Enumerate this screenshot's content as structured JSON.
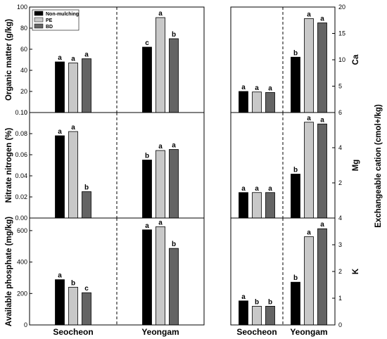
{
  "chart_data": {
    "type": "bar",
    "sites": [
      "Seocheon",
      "Yeongam"
    ],
    "treatments": [
      {
        "name": "Non-mulching",
        "color": "#000000"
      },
      {
        "name": "PE",
        "color": "#c8c8c8"
      },
      {
        "name": "BD",
        "color": "#646464"
      }
    ],
    "shared_ylabel": "Exchangeable cation (cmol+/kg)",
    "panels": [
      {
        "id": "organic-matter",
        "ylabel": "Organic matter (g/kg)",
        "ylim": [
          0,
          100
        ],
        "yticks": [
          "0",
          "20",
          "40",
          "60",
          "80",
          "100"
        ],
        "legend": true,
        "values": {
          "Seocheon": [
            48,
            47,
            51
          ],
          "Yeongam": [
            62,
            90,
            70
          ]
        },
        "letters": {
          "Seocheon": [
            "a",
            "a",
            "a"
          ],
          "Yeongam": [
            "c",
            "a",
            "b"
          ]
        }
      },
      {
        "id": "ca",
        "ylabel": "Ca",
        "ylim": [
          0,
          20
        ],
        "yticks": [
          "5",
          "10",
          "15",
          "20"
        ],
        "values": {
          "Seocheon": [
            4.0,
            3.9,
            3.8
          ],
          "Yeongam": [
            10.5,
            17.8,
            17.0
          ]
        },
        "letters": {
          "Seocheon": [
            "a",
            "a",
            "a"
          ],
          "Yeongam": [
            "b",
            "a",
            "a"
          ]
        }
      },
      {
        "id": "nitrate-nitrogen",
        "ylabel": "Nitrate nitrogen (%)",
        "ylim": [
          0,
          0.1
        ],
        "yticks": [
          "0.00",
          "0.02",
          "0.04",
          "0.06",
          "0.08",
          "0.10"
        ],
        "values": {
          "Seocheon": [
            0.078,
            0.082,
            0.025
          ],
          "Yeongam": [
            0.055,
            0.064,
            0.065
          ]
        },
        "letters": {
          "Seocheon": [
            "a",
            "a",
            "b"
          ],
          "Yeongam": [
            "b",
            "a",
            "a"
          ]
        }
      },
      {
        "id": "mg",
        "ylabel": "Mg",
        "ylim": [
          0,
          6
        ],
        "yticks": [
          "2",
          "4",
          "6"
        ],
        "values": {
          "Seocheon": [
            1.45,
            1.45,
            1.45
          ],
          "Yeongam": [
            2.5,
            5.45,
            5.35
          ]
        },
        "letters": {
          "Seocheon": [
            "a",
            "a",
            "a"
          ],
          "Yeongam": [
            "b",
            "a",
            "a"
          ]
        }
      },
      {
        "id": "available-phosphate",
        "ylabel": "Available phosphate (mg/kg)",
        "ylim": [
          0,
          680
        ],
        "yticks": [
          "0",
          "200",
          "400",
          "600"
        ],
        "values": {
          "Seocheon": [
            288,
            240,
            205
          ],
          "Yeongam": [
            605,
            625,
            487
          ]
        },
        "letters": {
          "Seocheon": [
            "a",
            "b",
            "c"
          ],
          "Yeongam": [
            "a",
            "a",
            "b"
          ]
        }
      },
      {
        "id": "k",
        "ylabel": "K",
        "ylim": [
          0,
          4
        ],
        "yticks": [
          "0",
          "1",
          "2",
          "3",
          "4"
        ],
        "values": {
          "Seocheon": [
            0.9,
            0.7,
            0.7
          ],
          "Yeongam": [
            1.6,
            3.3,
            3.6
          ]
        },
        "letters": {
          "Seocheon": [
            "a",
            "b",
            "b"
          ],
          "Yeongam": [
            "b",
            "a",
            "a"
          ]
        }
      }
    ]
  }
}
